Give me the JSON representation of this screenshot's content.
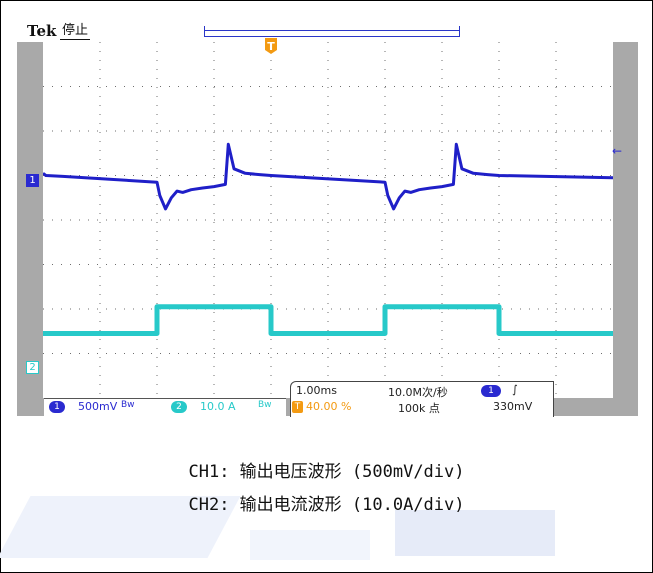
{
  "scope": {
    "brand": "Tek",
    "status": "停止",
    "trigger_position_marker": "T",
    "ch1_marker": "1",
    "ch2_marker": "2",
    "trigger_level_marker": "←",
    "colors": {
      "ch1": "#1f1fc8",
      "ch2": "#27c9c9",
      "trigger": "#f39a12",
      "bezel": "#a9a9a9",
      "grid_dots": "#6e6e6e"
    }
  },
  "readouts": {
    "ch1_badge": "1",
    "ch1_scale": "500mV",
    "ch1_bandwidth": "Bw",
    "ch2_badge": "2",
    "ch2_scale": "10.0 A",
    "ch2_bandwidth": "Bw",
    "timebase": "1.00ms",
    "trigger_badge": "T",
    "trigger_position": "40.00 %",
    "sample_rate": "10.0M次/秒",
    "record_length": "100k 点",
    "trigger_source_badge": "1",
    "trigger_slope": "∫",
    "trigger_level": "330mV"
  },
  "caption": {
    "line1": "CH1: 输出电压波形 (500mV/div)",
    "line2": "CH2: 输出电流波形 (10.0A/div)"
  },
  "chart_data": {
    "type": "line",
    "x_unit": "div",
    "y_unit": "div",
    "xlim": [
      0,
      10
    ],
    "ylim": [
      -4,
      4
    ],
    "grid": true,
    "series": [
      {
        "name": "CH1",
        "x": [
          0.0,
          0.05,
          0.35,
          2.0,
          2.05,
          2.15,
          2.25,
          2.35,
          2.45,
          2.6,
          2.8,
          3.0,
          3.2,
          3.25,
          3.35,
          3.55,
          3.8,
          4.0,
          6.0,
          6.05,
          6.15,
          6.25,
          6.35,
          6.45,
          6.6,
          6.8,
          7.0,
          7.2,
          7.25,
          7.35,
          7.55,
          7.8,
          8.0,
          10.0
        ],
        "y": [
          1.05,
          1.0,
          0.98,
          0.85,
          0.55,
          0.25,
          0.5,
          0.65,
          0.62,
          0.68,
          0.72,
          0.75,
          0.8,
          1.7,
          1.15,
          1.05,
          1.02,
          1.0,
          0.85,
          0.55,
          0.25,
          0.5,
          0.65,
          0.62,
          0.68,
          0.72,
          0.75,
          0.8,
          1.7,
          1.15,
          1.05,
          1.02,
          1.0,
          0.95
        ]
      },
      {
        "name": "CH2",
        "x": [
          0.0,
          2.0,
          2.0,
          4.0,
          4.0,
          6.0,
          6.0,
          8.0,
          8.0,
          10.0
        ],
        "y": [
          -2.55,
          -2.55,
          -1.95,
          -1.95,
          -2.55,
          -2.55,
          -1.95,
          -1.95,
          -2.55,
          -2.55
        ]
      }
    ]
  }
}
